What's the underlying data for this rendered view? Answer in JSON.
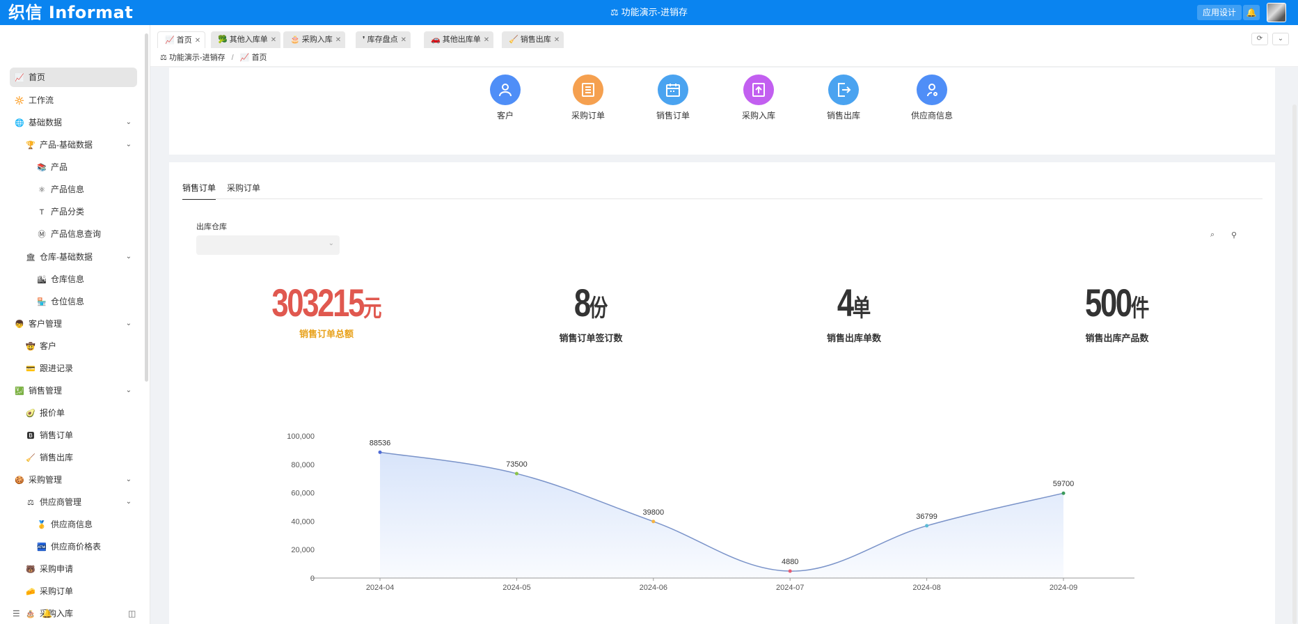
{
  "header": {
    "logo": "织信 Informat",
    "title": "功能演示-进销存",
    "app_design": "应用设计",
    "colors": {
      "topbar": "#0a84f0"
    }
  },
  "sidebar": {
    "items": [
      {
        "label": "首页",
        "icon": "chart-up-icon",
        "glyph": "📈"
      },
      {
        "label": "工作流",
        "icon": "sun-icon",
        "glyph": "🔆"
      },
      {
        "label": "基础数据",
        "icon": "globe-icon",
        "glyph": "🌐"
      },
      {
        "label": "产品-基础数据",
        "icon": "trophy-icon",
        "glyph": "🏆"
      },
      {
        "label": "产品",
        "icon": "books-icon",
        "glyph": "📚"
      },
      {
        "label": "产品信息",
        "icon": "atom-icon",
        "glyph": "⚛"
      },
      {
        "label": "产品分类",
        "icon": "letter-t-icon",
        "glyph": "T"
      },
      {
        "label": "产品信息查询",
        "icon": "circle-m-icon",
        "glyph": "Ⓜ"
      },
      {
        "label": "仓库-基础数据",
        "icon": "bank-icon",
        "glyph": "🏛"
      },
      {
        "label": "仓库信息",
        "icon": "cityscape-icon",
        "glyph": "🏙"
      },
      {
        "label": "仓位信息",
        "icon": "store-icon",
        "glyph": "🏪"
      },
      {
        "label": "客户管理",
        "icon": "boy-icon",
        "glyph": "👦"
      },
      {
        "label": "客户",
        "icon": "cowboy-icon",
        "glyph": "🤠"
      },
      {
        "label": "跟进记录",
        "icon": "credit-card-icon",
        "glyph": "💳"
      },
      {
        "label": "销售管理",
        "icon": "chart-yen-icon",
        "glyph": "💹"
      },
      {
        "label": "报价单",
        "icon": "avocado-icon",
        "glyph": "🥑"
      },
      {
        "label": "销售订单",
        "icon": "letter-b-icon",
        "glyph": "🅱"
      },
      {
        "label": "销售出库",
        "icon": "broom-icon",
        "glyph": "🧹"
      },
      {
        "label": "采购管理",
        "icon": "cookie-icon",
        "glyph": "🍪"
      },
      {
        "label": "供应商管理",
        "icon": "scales-icon",
        "glyph": "⚖"
      },
      {
        "label": "供应商信息",
        "icon": "medal-icon",
        "glyph": "🥇"
      },
      {
        "label": "供应商价格表",
        "icon": "atm-icon",
        "glyph": "🏧"
      },
      {
        "label": "采购申请",
        "icon": "bear-icon",
        "glyph": "🐻"
      },
      {
        "label": "采购订单",
        "icon": "cheese-icon",
        "glyph": "🧀"
      },
      {
        "label": "采购入库",
        "icon": "cake-icon",
        "glyph": "🎂"
      }
    ]
  },
  "tabs": [
    {
      "label": "首页",
      "glyph": "📈"
    },
    {
      "label": "其他入库单",
      "glyph": "🥦"
    },
    {
      "label": "采购入库",
      "glyph": "🎂"
    },
    {
      "label": "库存盘点",
      "glyph": "❜"
    },
    {
      "label": "其他出库单",
      "glyph": "🚗"
    },
    {
      "label": "销售出库",
      "glyph": "🧹"
    }
  ],
  "breadcrumb": {
    "root": "功能演示-进销存",
    "current": "首页"
  },
  "shortcuts": [
    {
      "label": "客户",
      "icon": "user-icon",
      "color": "#4f8ef7"
    },
    {
      "label": "采购订单",
      "icon": "document-icon",
      "color": "#f5a04f"
    },
    {
      "label": "销售订单",
      "icon": "calendar-icon",
      "color": "#4aa3f0"
    },
    {
      "label": "采购入库",
      "icon": "inbound-icon",
      "color": "#c25ff0"
    },
    {
      "label": "销售出库",
      "icon": "outbound-icon",
      "color": "#4aa3f0"
    },
    {
      "label": "供应商信息",
      "icon": "location-user-icon",
      "color": "#4f8ef7"
    }
  ],
  "content_tabs": [
    "销售订单",
    "采购订单"
  ],
  "filter": {
    "label": "出库仓库",
    "value": ""
  },
  "kpis": [
    {
      "value": "303215",
      "unit": "元",
      "caption": "销售订单总额",
      "color": "#e0584f",
      "caption_color": "#e8a21c"
    },
    {
      "value": "8",
      "unit": "份",
      "caption": "销售订单签订数",
      "color": "#333333",
      "caption_color": "#333333"
    },
    {
      "value": "4",
      "unit": "单",
      "caption": "销售出库单数",
      "color": "#333333",
      "caption_color": "#333333"
    },
    {
      "value": "500",
      "unit": "件",
      "caption": "销售出库产品数",
      "color": "#333333",
      "caption_color": "#333333"
    }
  ],
  "chart_data": {
    "type": "area",
    "x": [
      "2024-04",
      "2024-05",
      "2024-06",
      "2024-07",
      "2024-08",
      "2024-09"
    ],
    "values": [
      88536,
      73500,
      39800,
      4880,
      36799,
      59700
    ],
    "data_labels": [
      "88536",
      "73500",
      "39800",
      "4880",
      "36799",
      "59700"
    ],
    "yticks": [
      "0",
      "20,000",
      "40,000",
      "60,000",
      "80,000",
      "100,000"
    ],
    "ylim": [
      0,
      100000
    ],
    "grid": false,
    "point_colors": [
      "#4f6bd6",
      "#8bc34a",
      "#f5b342",
      "#e85c73",
      "#5cbbd6",
      "#3a9a5a"
    ],
    "line_color": "#7a93c9",
    "fill_color": "#d6e3fa"
  }
}
